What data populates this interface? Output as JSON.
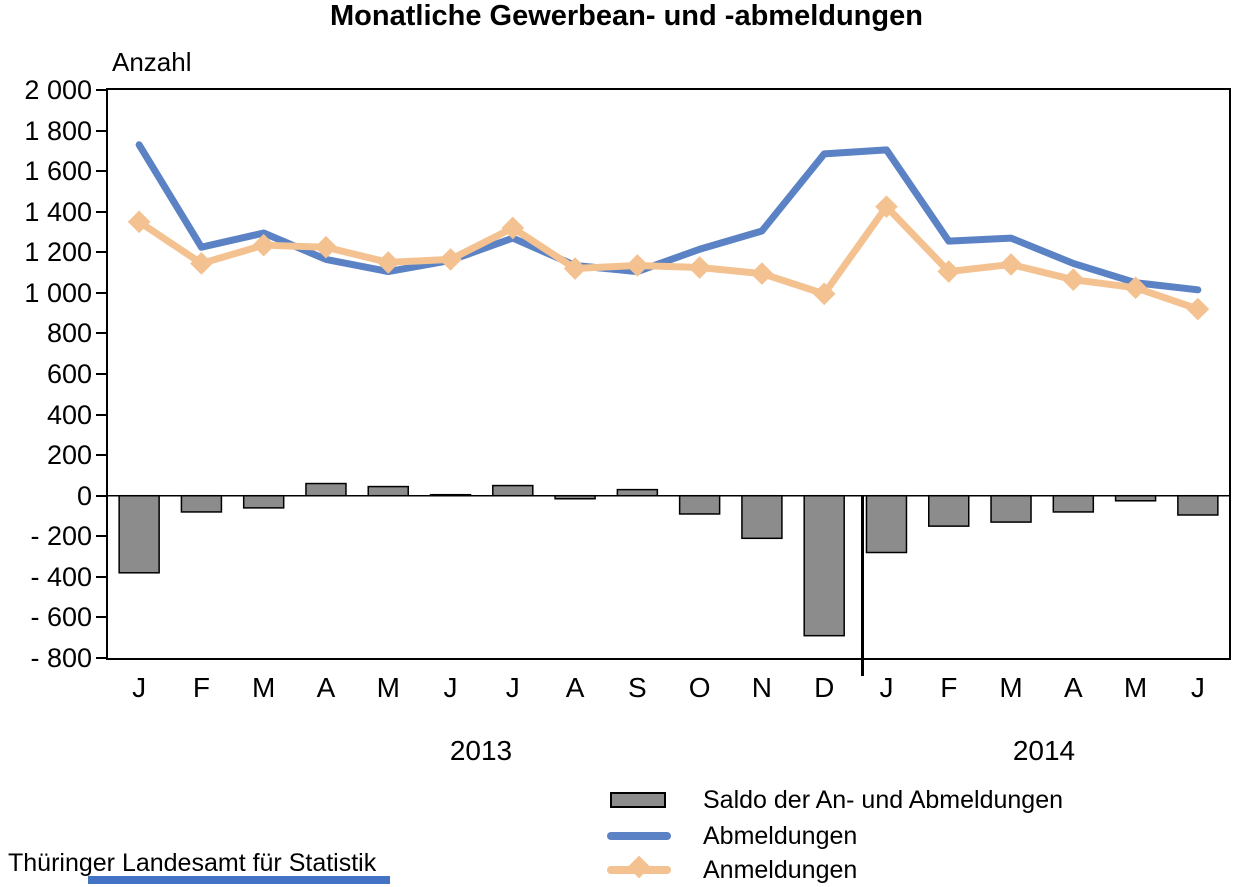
{
  "title": "Monatliche Gewerbean- und -abmeldungen",
  "y_axis_title": "Anzahl",
  "source": "Thüringer Landesamt für Statistik",
  "accent_bar_color": "#4472C4",
  "chart_data": {
    "type": "combo-bar-line",
    "title": "Monatliche Gewerbean- und -abmeldungen",
    "ylabel": "Anzahl",
    "xlabel": "",
    "ylim": [
      -800,
      2000
    ],
    "y_tick_step": 200,
    "grid": false,
    "legend_position": "bottom",
    "y_ticks": [
      {
        "value": 2000,
        "label": "2 000"
      },
      {
        "value": 1800,
        "label": "1 800"
      },
      {
        "value": 1600,
        "label": "1 600"
      },
      {
        "value": 1400,
        "label": "1 400"
      },
      {
        "value": 1200,
        "label": "1 200"
      },
      {
        "value": 1000,
        "label": "1 000"
      },
      {
        "value": 800,
        "label": "800"
      },
      {
        "value": 600,
        "label": "600"
      },
      {
        "value": 400,
        "label": "400"
      },
      {
        "value": 200,
        "label": "200"
      },
      {
        "value": 0,
        "label": "0"
      },
      {
        "value": -200,
        "label": "- 200"
      },
      {
        "value": -400,
        "label": "- 400"
      },
      {
        "value": -600,
        "label": "- 600"
      },
      {
        "value": -800,
        "label": "- 800"
      }
    ],
    "categories": [
      "J",
      "F",
      "M",
      "A",
      "M",
      "J",
      "J",
      "A",
      "S",
      "O",
      "N",
      "D",
      "J",
      "F",
      "M",
      "A",
      "M",
      "J"
    ],
    "year_labels": [
      "2013",
      "2014"
    ],
    "year_split_after_index": 11,
    "series": [
      {
        "name": "Saldo der An- und Abmeldungen",
        "type": "bar",
        "color": "#8C8C8C",
        "border_color": "#000000",
        "values": [
          -380,
          -80,
          -60,
          60,
          45,
          5,
          50,
          -15,
          30,
          -90,
          -210,
          -690,
          -280,
          -150,
          -130,
          -80,
          -25,
          -95
        ]
      },
      {
        "name": "Abmeldungen",
        "type": "line",
        "color": "#5B82C4",
        "marker": "none",
        "values": [
          1730,
          1225,
          1295,
          1165,
          1105,
          1160,
          1270,
          1135,
          1105,
          1215,
          1305,
          1685,
          1705,
          1255,
          1270,
          1145,
          1050,
          1015
        ]
      },
      {
        "name": "Anmeldungen",
        "type": "line",
        "color": "#F4C291",
        "marker": "diamond",
        "values": [
          1350,
          1145,
          1235,
          1225,
          1150,
          1165,
          1320,
          1120,
          1135,
          1125,
          1095,
          995,
          1425,
          1105,
          1140,
          1065,
          1025,
          920
        ]
      }
    ]
  }
}
